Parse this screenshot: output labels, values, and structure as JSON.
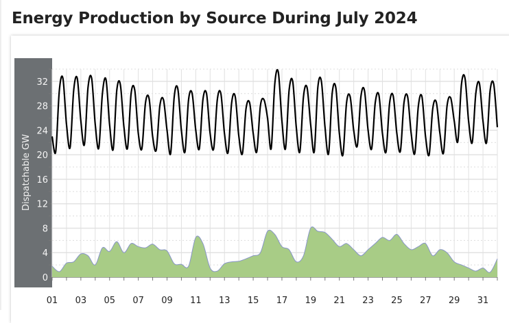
{
  "title": "Energy Production by Source During July 2024",
  "chart_data": {
    "type": "line",
    "title": "Energy Production by Source During July 2024",
    "ylabel": "Dispatchable GW",
    "xlabel": "",
    "ylim": [
      0,
      34
    ],
    "xlim": [
      1,
      32
    ],
    "grid": true,
    "yticks": [
      "0",
      "4",
      "8",
      "12",
      "16",
      "20",
      "24",
      "28",
      "32"
    ],
    "xticks": [
      "01",
      "03",
      "05",
      "07",
      "09",
      "11",
      "13",
      "15",
      "17",
      "19",
      "21",
      "23",
      "25",
      "27",
      "29",
      "31"
    ],
    "series": [
      {
        "type": "line",
        "color": "#000000",
        "sample_hours": 6,
        "x_start_day": 1,
        "values": [
          23.0,
          20.5,
          30.5,
          32.5,
          25.0,
          21.2,
          30.5,
          32.5,
          25.5,
          21.7,
          31.0,
          32.5,
          25.0,
          21.1,
          30.0,
          32.3,
          25.0,
          20.9,
          30.5,
          31.5,
          24.5,
          21.1,
          30.0,
          30.6,
          23.5,
          21.0,
          28.5,
          29.2,
          23.0,
          20.8,
          28.0,
          29.0,
          24.0,
          20.2,
          29.5,
          30.8,
          24.0,
          20.5,
          29.0,
          30.0,
          24.0,
          21.0,
          29.0,
          30.0,
          23.5,
          21.0,
          29.0,
          30.0,
          23.5,
          20.4,
          28.5,
          29.5,
          23.0,
          20.2,
          27.5,
          28.5,
          23.5,
          20.5,
          28.0,
          29.0,
          26.0,
          21.0,
          31.5,
          33.5,
          25.5,
          21.0,
          30.5,
          32.0,
          24.5,
          20.5,
          29.5,
          31.0,
          25.0,
          20.5,
          31.0,
          32.0,
          24.5,
          20.2,
          30.0,
          31.0,
          23.5,
          20.0,
          28.5,
          29.5,
          24.0,
          21.5,
          29.5,
          30.5,
          24.0,
          21.0,
          28.5,
          29.8,
          23.5,
          20.5,
          28.5,
          29.6,
          23.5,
          20.6,
          28.5,
          29.5,
          23.5,
          20.2,
          28.0,
          29.5,
          23.0,
          20.0,
          27.5,
          28.6,
          23.5,
          20.3,
          28.0,
          29.3,
          25.5,
          22.2,
          31.5,
          32.5,
          25.5,
          22.0,
          30.0,
          31.7,
          25.5,
          22.0,
          30.5,
          31.5,
          24.5
        ]
      },
      {
        "type": "area",
        "color": "#a8cc86",
        "edge_color": "#8895c8",
        "sample_hours": 12,
        "x_start_day": 1,
        "values": [
          1.8,
          0.9,
          2.3,
          2.5,
          3.8,
          3.5,
          2.0,
          4.8,
          4.2,
          5.8,
          4.0,
          5.5,
          5.0,
          4.8,
          5.4,
          4.5,
          4.3,
          2.2,
          2.1,
          1.8,
          6.5,
          5.5,
          1.5,
          1.0,
          2.2,
          2.5,
          2.6,
          3.0,
          3.5,
          4.0,
          7.5,
          7.0,
          5.0,
          4.5,
          2.5,
          3.5,
          8.0,
          7.5,
          7.3,
          6.2,
          5.0,
          5.5,
          4.5,
          3.5,
          4.5,
          5.5,
          6.5,
          6.0,
          7.0,
          5.5,
          4.5,
          5.0,
          5.5,
          3.5,
          4.5,
          4.0,
          2.5,
          2.0,
          1.5,
          1.0,
          1.5,
          0.8,
          3.0
        ]
      }
    ]
  }
}
